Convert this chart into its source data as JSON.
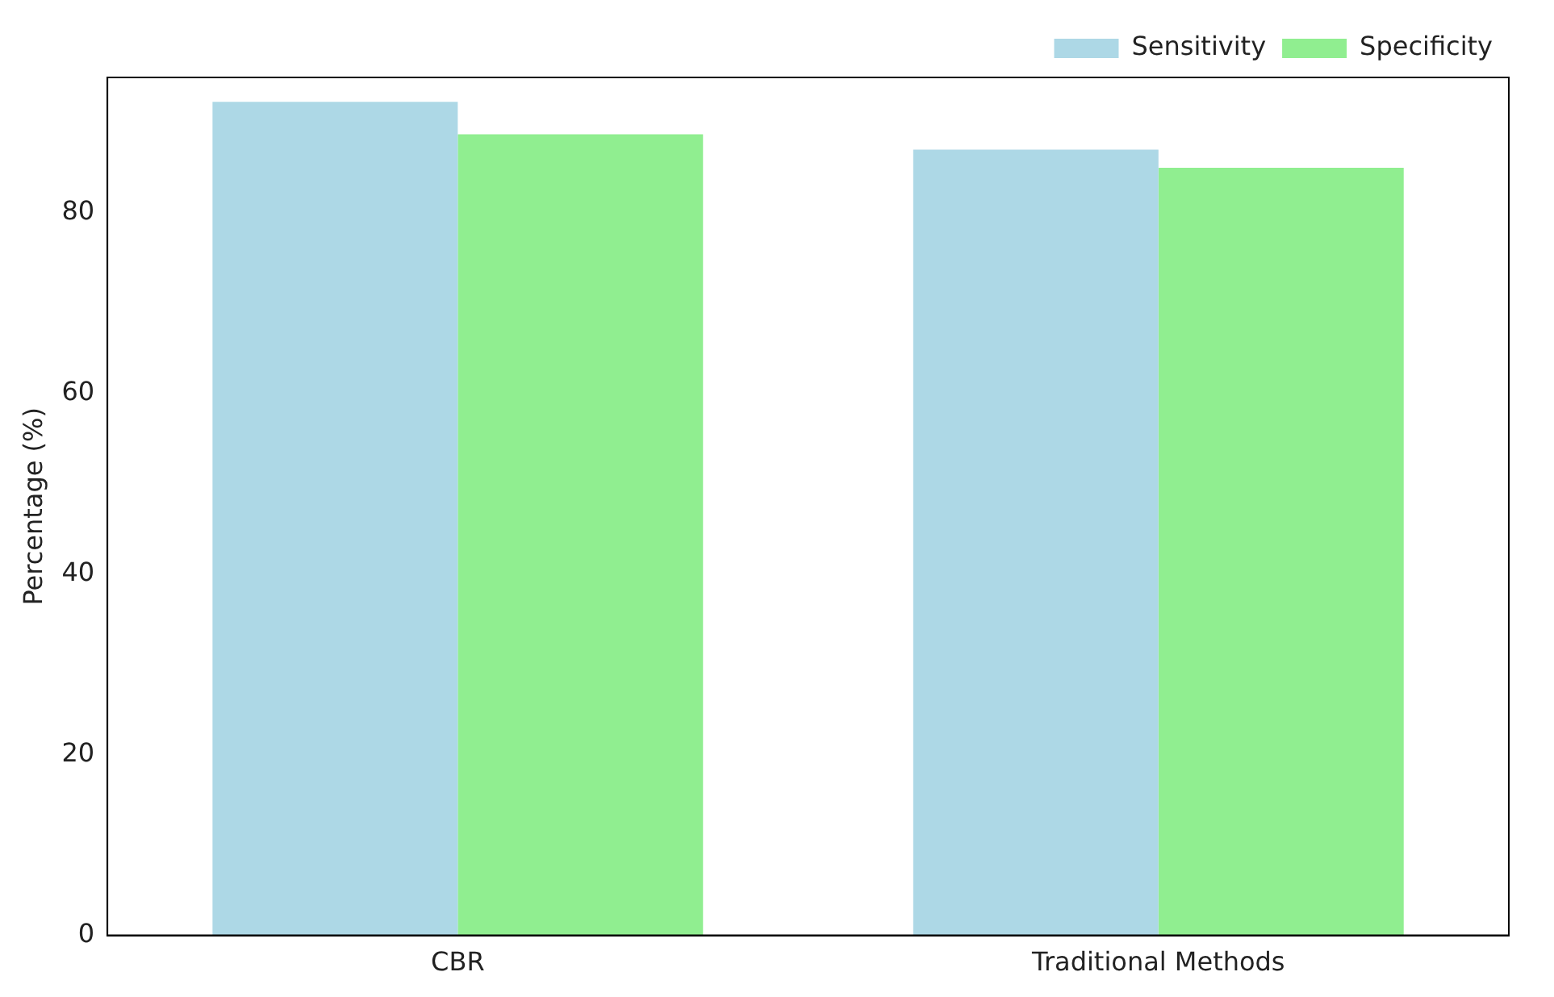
{
  "chart_data": {
    "type": "bar",
    "ylabel": "Percentage (%)",
    "categories": [
      "CBR",
      "Traditional Methods"
    ],
    "series": [
      {
        "name": "Sensitivity",
        "color": "#add8e6",
        "values": [
          92.3,
          87.0
        ]
      },
      {
        "name": "Specificity",
        "color": "#90ee90",
        "values": [
          88.7,
          85
        ]
      }
    ],
    "ylim": [
      0,
      95
    ],
    "yticks": [
      0,
      20,
      40,
      60,
      80
    ],
    "grid": false,
    "legend": "top right"
  }
}
